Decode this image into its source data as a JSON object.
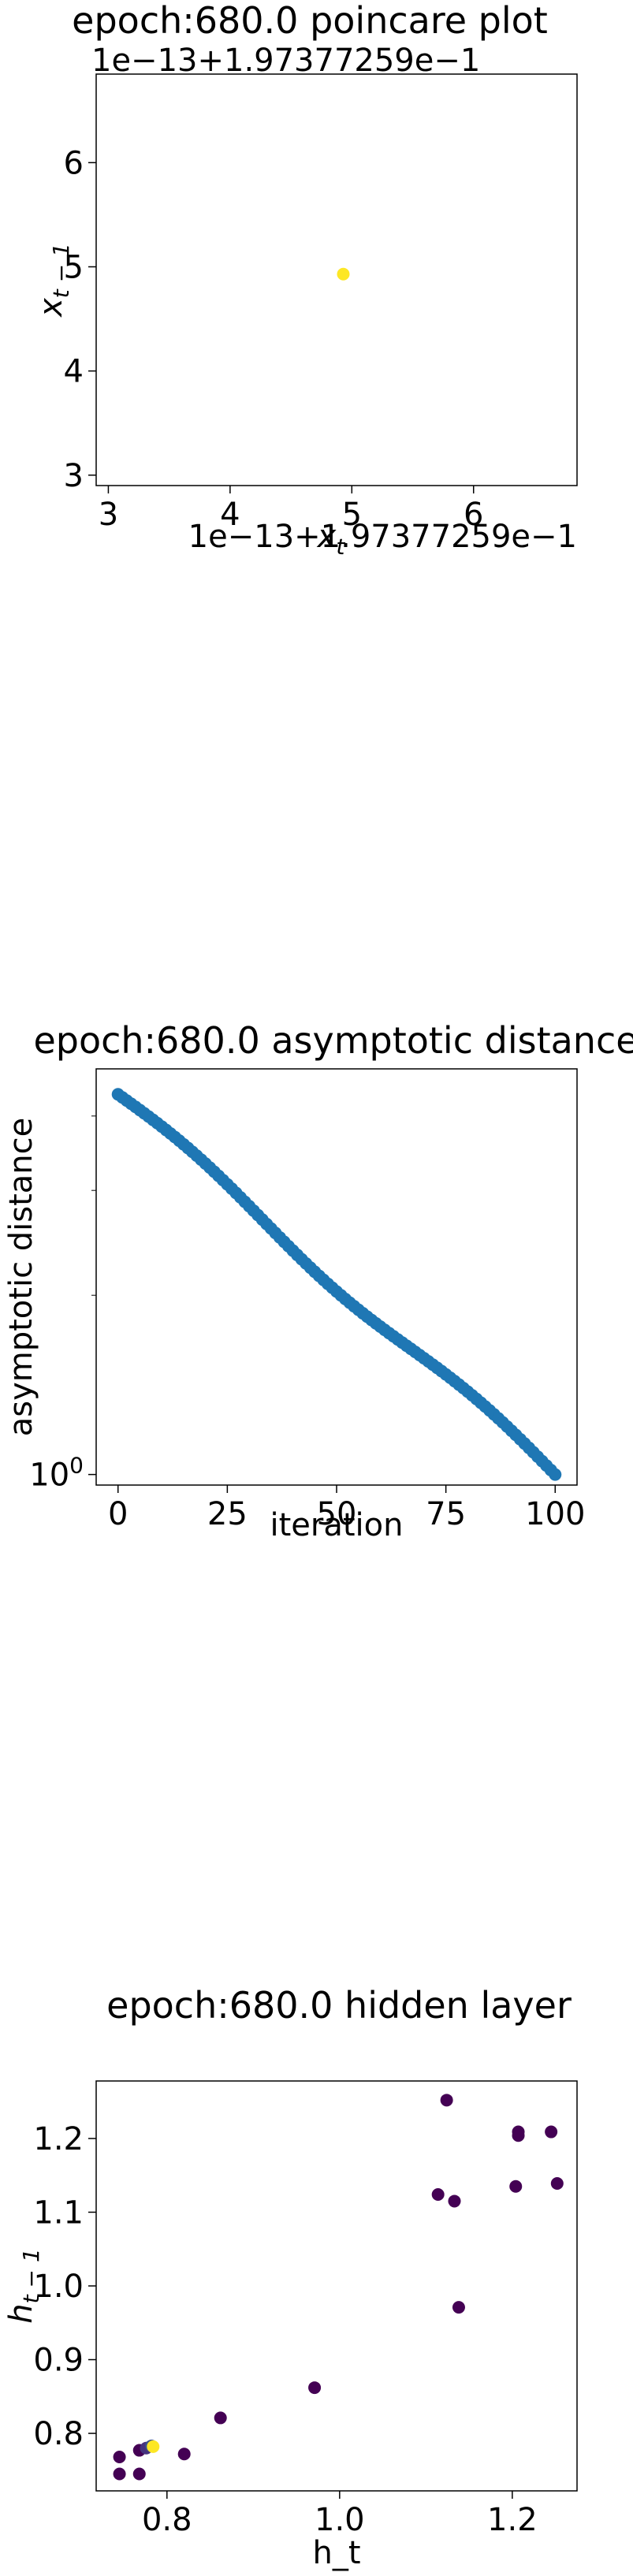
{
  "charts": [
    {
      "type": "scatter",
      "title": "epoch:680.0 poincare plot",
      "xlabel_base": "x",
      "xlabel_sub": "t",
      "ylabel_base": "x",
      "ylabel_sub": "t − 1",
      "x_offset_label": "1e−13+1.97377259e−1",
      "y_offset_label": "1e−13+1.97377259e−1",
      "xlim": [
        2.9,
        6.85
      ],
      "ylim": [
        2.9,
        6.85
      ],
      "xticks": [
        3,
        4,
        5,
        6
      ],
      "yticks": [
        3,
        4,
        5,
        6
      ],
      "points": [
        {
          "x": 4.93,
          "y": 4.93,
          "color": "#fde725"
        }
      ]
    },
    {
      "type": "scatter",
      "title": "epoch:680.0 asymptotic distance",
      "xlabel": "iteration",
      "ylabel": "asymptotic distance",
      "yscale": "log",
      "xlim": [
        -5,
        105
      ],
      "ylim": [
        0.96,
        4.8
      ],
      "xticks": [
        0,
        25,
        50,
        75,
        100
      ],
      "yticks_major": [
        {
          "value": 1,
          "base": "10",
          "exp": "0"
        }
      ],
      "yticks_minor": [
        2,
        3,
        4
      ],
      "color": "#1f77b4",
      "y_start": 4.35,
      "y_end": 1.0,
      "n_points": 101
    },
    {
      "type": "scatter",
      "title": "epoch:680.0 hidden layer",
      "xlabel": "h_t",
      "ylabel_base": "h",
      "ylabel_sub": "t − 1",
      "xlim": [
        0.718,
        1.275
      ],
      "ylim": [
        0.722,
        1.278
      ],
      "xticks": [
        "0.8",
        "1.0",
        "1.2"
      ],
      "yticks": [
        "0.8",
        "0.9",
        "1.0",
        "1.1",
        "1.2"
      ],
      "points": [
        {
          "x": 0.745,
          "y": 0.745,
          "color": "#440154"
        },
        {
          "x": 0.745,
          "y": 0.768,
          "color": "#440154"
        },
        {
          "x": 0.768,
          "y": 0.745,
          "color": "#440154"
        },
        {
          "x": 0.768,
          "y": 0.777,
          "color": "#440154"
        },
        {
          "x": 0.776,
          "y": 0.78,
          "color": "#46337e"
        },
        {
          "x": 0.782,
          "y": 0.783,
          "color": "#3b528b"
        },
        {
          "x": 0.784,
          "y": 0.782,
          "color": "#fde725"
        },
        {
          "x": 0.82,
          "y": 0.772,
          "color": "#440154"
        },
        {
          "x": 0.862,
          "y": 0.821,
          "color": "#440154"
        },
        {
          "x": 0.971,
          "y": 0.862,
          "color": "#440154"
        },
        {
          "x": 1.114,
          "y": 1.124,
          "color": "#440154"
        },
        {
          "x": 1.124,
          "y": 1.252,
          "color": "#440154"
        },
        {
          "x": 1.133,
          "y": 1.115,
          "color": "#440154"
        },
        {
          "x": 1.138,
          "y": 0.971,
          "color": "#440154"
        },
        {
          "x": 1.204,
          "y": 1.135,
          "color": "#440154"
        },
        {
          "x": 1.207,
          "y": 1.204,
          "color": "#440154"
        },
        {
          "x": 1.207,
          "y": 1.209,
          "color": "#440154"
        },
        {
          "x": 1.245,
          "y": 1.209,
          "color": "#440154"
        },
        {
          "x": 1.252,
          "y": 1.139,
          "color": "#440154"
        }
      ]
    }
  ]
}
